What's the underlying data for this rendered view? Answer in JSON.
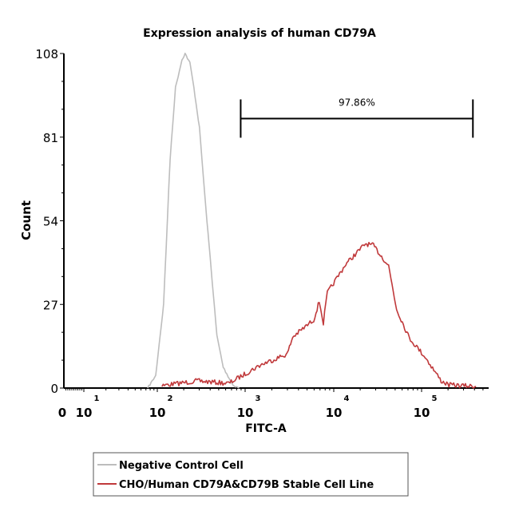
{
  "chart_data": {
    "type": "line",
    "title": "Expression analysis of human CD79A",
    "xlabel": "FITC-A",
    "ylabel": "Count",
    "x_scale": "biexponential (log)",
    "ylim": [
      0,
      108
    ],
    "y_ticks": [
      "0",
      "27",
      "54",
      "81",
      "108"
    ],
    "x_ticks": [
      {
        "value": 0,
        "label": "0",
        "exp": ""
      },
      {
        "value": 10,
        "label": "10",
        "exp": "1"
      },
      {
        "value": 100,
        "label": "10",
        "exp": "2"
      },
      {
        "value": 1000,
        "label": "10",
        "exp": "3"
      },
      {
        "value": 10000,
        "label": "10",
        "exp": "4"
      },
      {
        "value": 100000,
        "label": "10",
        "exp": "5"
      }
    ],
    "grid": false,
    "gate": {
      "label": "97.86%",
      "x_start": 890,
      "x_end": 384000,
      "y": 87
    },
    "series": [
      {
        "name": "Negative Control Cell",
        "color": "#bdbdbd",
        "points": [
          [
            74,
            0
          ],
          [
            95,
            4
          ],
          [
            118,
            27
          ],
          [
            140,
            74
          ],
          [
            161,
            97
          ],
          [
            191,
            106
          ],
          [
            207,
            108
          ],
          [
            235,
            105
          ],
          [
            261,
            97
          ],
          [
            302,
            84
          ],
          [
            357,
            58
          ],
          [
            412,
            38
          ],
          [
            477,
            17
          ],
          [
            564,
            6.7
          ],
          [
            724,
            1
          ],
          [
            855,
            0
          ]
        ]
      },
      {
        "name": "CHO/Human CD79A&CD79B Stable Cell Line",
        "color": "#c0393b",
        "points": [
          [
            113,
            0.8
          ],
          [
            283,
            2.3
          ],
          [
            653,
            1.5
          ],
          [
            1500,
            7.5
          ],
          [
            2990,
            11
          ],
          [
            3450,
            16.5
          ],
          [
            5940,
            22
          ],
          [
            6870,
            28
          ],
          [
            7630,
            21
          ],
          [
            8470,
            30.7
          ],
          [
            13700,
            40
          ],
          [
            23000,
            46.6
          ],
          [
            28300,
            46
          ],
          [
            42100,
            39.5
          ],
          [
            51900,
            25.5
          ],
          [
            72400,
            16.2
          ],
          [
            110000,
            10
          ],
          [
            167000,
            2.3
          ],
          [
            205000,
            1
          ],
          [
            417000,
            0.5
          ]
        ]
      }
    ],
    "legend": {
      "position": "bottom"
    }
  }
}
